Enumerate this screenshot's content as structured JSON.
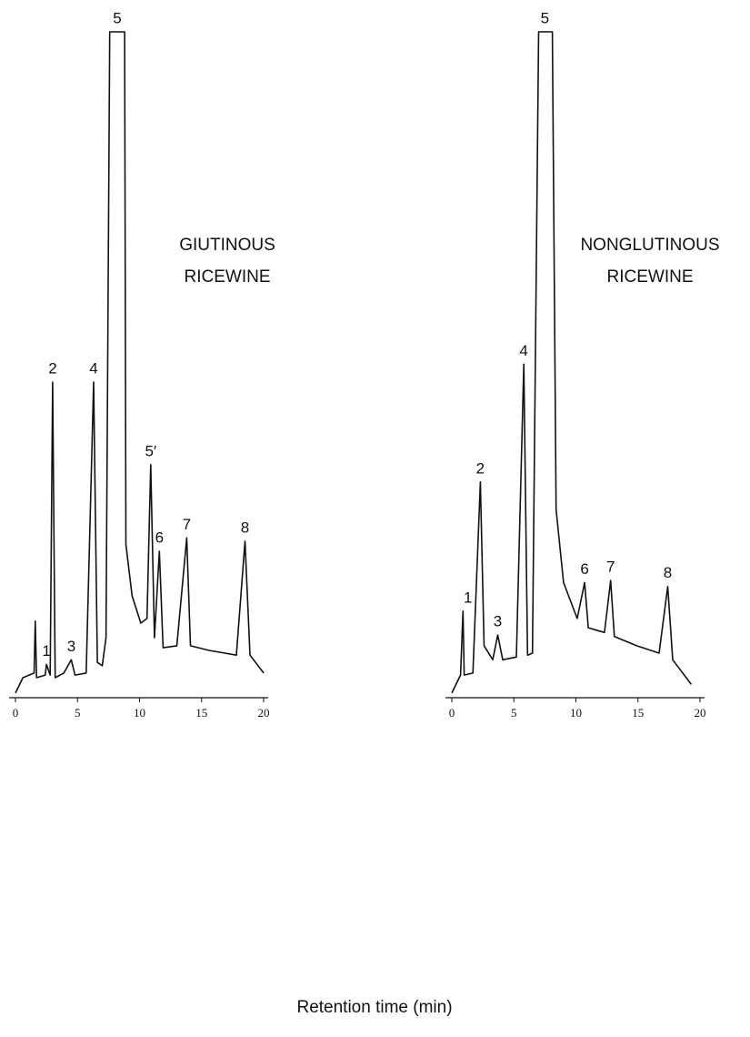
{
  "xlabel": "Retention time (min)",
  "chart_data": [
    {
      "type": "line",
      "title": [
        "GIUTINOUS",
        "RICEWINE"
      ],
      "color": "#111111",
      "xlim": [
        0,
        20
      ],
      "xticks": [
        0,
        5,
        10,
        15,
        20
      ],
      "ylim": [
        0,
        100
      ],
      "x": [
        0,
        0.6,
        1.5,
        1.6,
        1.7,
        2.4,
        2.5,
        2.8,
        3.0,
        3.2,
        3.9,
        4.5,
        4.8,
        5.7,
        6.3,
        6.6,
        7.0,
        7.3,
        7.6,
        8.8,
        8.9,
        9.4,
        10.1,
        10.6,
        10.9,
        11.2,
        11.6,
        11.9,
        13.0,
        13.8,
        14.1,
        15.6,
        17.8,
        18.5,
        18.9,
        20
      ],
      "values": [
        0.7,
        3,
        3.7,
        11.5,
        3,
        3.4,
        5,
        3.4,
        47.4,
        3,
        3.7,
        5.7,
        3.4,
        3.7,
        47.4,
        5.3,
        4.8,
        9,
        100,
        100,
        23,
        15.3,
        11.2,
        11.9,
        35,
        9,
        22,
        7.5,
        7.8,
        24,
        7.8,
        7.1,
        6.4,
        23.5,
        6.4,
        3.7
      ],
      "peaks": [
        {
          "label": "1",
          "x": 2.5
        },
        {
          "label": "2",
          "x": 3.0
        },
        {
          "label": "3",
          "x": 4.5
        },
        {
          "label": "4",
          "x": 6.3
        },
        {
          "label": "5",
          "x": 8.2
        },
        {
          "label": "5′",
          "x": 10.9
        },
        {
          "label": "6",
          "x": 11.6
        },
        {
          "label": "7",
          "x": 13.8
        },
        {
          "label": "8",
          "x": 18.5
        }
      ]
    },
    {
      "type": "line",
      "title": [
        "NONGLUTINOUS",
        "RICEWINE"
      ],
      "color": "#111111",
      "xlim": [
        0,
        20
      ],
      "xticks": [
        0,
        5,
        10,
        15,
        20
      ],
      "ylim": [
        0,
        100
      ],
      "x": [
        0,
        0.7,
        0.9,
        1.0,
        1.7,
        2.3,
        2.6,
        3.3,
        3.7,
        4.1,
        5.2,
        5.8,
        6.1,
        6.5,
        7.0,
        8.1,
        8.4,
        9.0,
        10.1,
        10.7,
        11.0,
        12.3,
        12.8,
        13.1,
        14.9,
        16.7,
        17.4,
        17.8,
        19.3
      ],
      "values": [
        0.7,
        3.4,
        13,
        3.4,
        3.7,
        32.4,
        7.8,
        5.7,
        9.4,
        5.7,
        6.1,
        50.1,
        6.4,
        6.7,
        100,
        100,
        28.3,
        17.3,
        11.9,
        17.3,
        10.5,
        9.8,
        17.6,
        9.2,
        7.8,
        6.7,
        16.7,
        5.7,
        2
      ],
      "peaks": [
        {
          "label": "1",
          "x": 1.3
        },
        {
          "label": "2",
          "x": 2.3
        },
        {
          "label": "3",
          "x": 3.7
        },
        {
          "label": "4",
          "x": 5.8
        },
        {
          "label": "5",
          "x": 7.5
        },
        {
          "label": "6",
          "x": 10.7
        },
        {
          "label": "7",
          "x": 12.8
        },
        {
          "label": "8",
          "x": 17.4
        }
      ]
    }
  ]
}
